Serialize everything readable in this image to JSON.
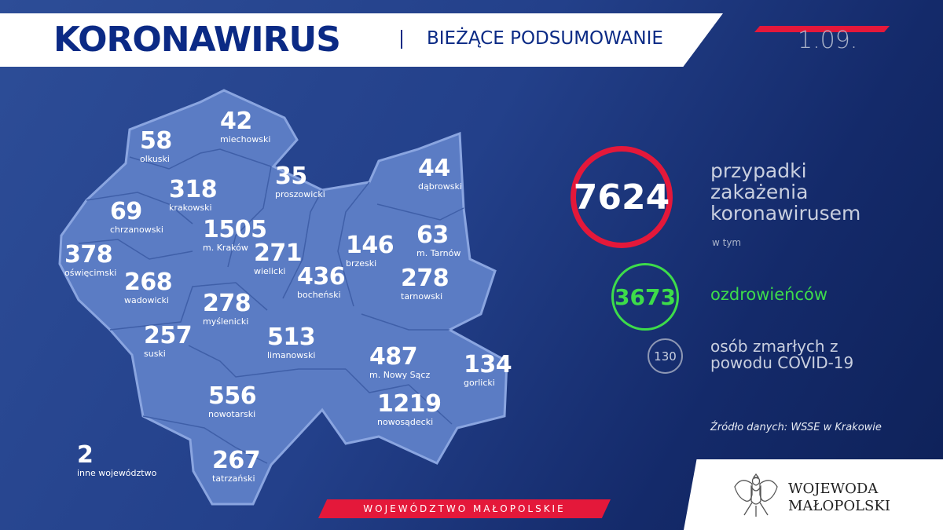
{
  "header": {
    "title": "KORONAWIRUS",
    "subtitle": "BIEŻĄCE PODSUMOWANIE",
    "date": "1.09."
  },
  "colors": {
    "background": "#23408a",
    "accent_red": "#e4183a",
    "recovered_green": "#3ddc4a",
    "map_fill": "#5b7cc4",
    "title_blue": "#0b2a85"
  },
  "districts": [
    {
      "value": "42",
      "name": "miechowski"
    },
    {
      "value": "58",
      "name": "olkuski"
    },
    {
      "value": "35",
      "name": "proszowicki"
    },
    {
      "value": "44",
      "name": "dąbrowski"
    },
    {
      "value": "318",
      "name": "krakowski"
    },
    {
      "value": "69",
      "name": "chrzanowski"
    },
    {
      "value": "1505",
      "name": "m. Kraków"
    },
    {
      "value": "271",
      "name": "wielicki"
    },
    {
      "value": "146",
      "name": "brzeski"
    },
    {
      "value": "63",
      "name": "m. Tarnów"
    },
    {
      "value": "378",
      "name": "oświęcimski"
    },
    {
      "value": "436",
      "name": "bocheński"
    },
    {
      "value": "278",
      "name": "tarnowski"
    },
    {
      "value": "268",
      "name": "wadowicki"
    },
    {
      "value": "278",
      "name": "myślenicki"
    },
    {
      "value": "257",
      "name": "suski"
    },
    {
      "value": "513",
      "name": "limanowski"
    },
    {
      "value": "487",
      "name": "m. Nowy Sącz"
    },
    {
      "value": "134",
      "name": "gorlicki"
    },
    {
      "value": "556",
      "name": "nowotarski"
    },
    {
      "value": "1219",
      "name": "nowosądecki"
    },
    {
      "value": "267",
      "name": "tatrzański"
    },
    {
      "value": "2",
      "name": "inne województwo"
    }
  ],
  "summary": {
    "cases": {
      "value": "7624",
      "label": "przypadki zakażenia koronawirusem",
      "note": "w tym"
    },
    "recovered": {
      "value": "3673",
      "label": "ozdrowieńców"
    },
    "deaths": {
      "value": "130",
      "label": "osób zmarłych z powodu COVID-19"
    }
  },
  "source": "Źródło danych: WSSE w Krakowie",
  "footer": {
    "region_banner": "WOJEWÓDZTWO MAŁOPOLSKIE",
    "logo_line1": "WOJEWODA",
    "logo_line2": "MAŁOPOLSKI",
    "logo_icon": "polish-eagle-emblem"
  }
}
